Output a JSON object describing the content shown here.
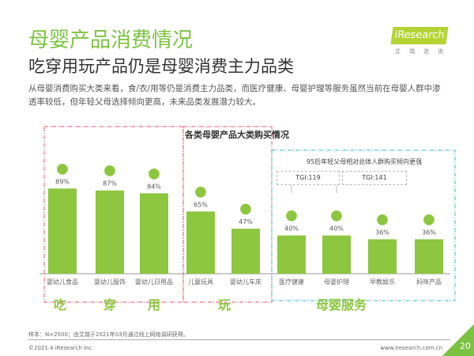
{
  "header": {
    "title": "母婴产品消费情况",
    "subtitle": "吃穿用玩产品仍是母婴消费主力品类",
    "description": "从母婴消费购买大类来看，食/衣/用等仍是消费主力品类，而医疗健康、母婴护理等服务虽然当前在母婴人群中渗透率较低，但年轻父母选择倾向更高，未来品类发展潜力较大。"
  },
  "logo": {
    "text": "iResearch",
    "sub": "艾瑞咨询"
  },
  "chart_data": {
    "type": "bar",
    "title": "各类母婴产品大类购买情况",
    "categories": [
      "婴幼儿食品",
      "婴幼儿服饰",
      "婴幼儿日用品",
      "儿童玩具",
      "婴幼儿车床",
      "医疗健康",
      "母婴护理",
      "早教娱乐",
      "妈咪产品"
    ],
    "values": [
      89,
      87,
      84,
      65,
      47,
      40,
      40,
      36,
      36
    ],
    "value_labels": [
      "89%",
      "87%",
      "84%",
      "65%",
      "47%",
      "40%",
      "40%",
      "36%",
      "36%"
    ],
    "icons": [
      "formula-can-icon",
      "baby-clothes-icon",
      "baby-bottle-icon",
      "teddy-bear-icon",
      "stroller-icon",
      "stethoscope-icon",
      "nurse-icon",
      "education-icon",
      "mother-icon"
    ],
    "ylim": [
      0,
      100
    ],
    "bar_color": "#8dc63f",
    "groups": [
      "吃",
      "穿",
      "用",
      "玩",
      "母婴服务"
    ],
    "annotation": {
      "title": "95后年轻父母相对总体人群购买倾向更强",
      "tgi": [
        "TGI:119",
        "TGI:141"
      ]
    }
  },
  "footer": {
    "source": "样本：N=2500；由艾瑞于2021年03月通过线上网络调研获得。",
    "copyright": "©2021.4 iResearch Inc.",
    "url": "www.iresearch.com.cn",
    "page": "20"
  }
}
